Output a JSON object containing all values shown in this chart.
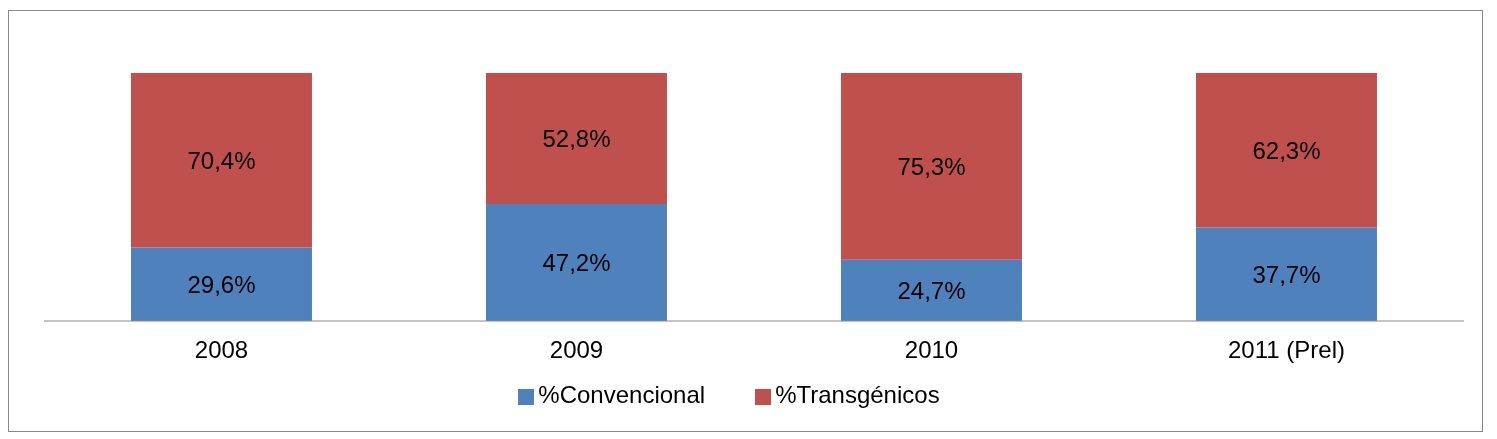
{
  "chart_data": {
    "type": "bar",
    "stacked": true,
    "categories": [
      "2008",
      "2009",
      "2010",
      "2011 (Prel)"
    ],
    "ylim": [
      0,
      100
    ],
    "tick_labels": "x",
    "grid": false,
    "legend": "bottom",
    "series": [
      {
        "name": "%Convencional",
        "color": "#4f81bd",
        "values": [
          29.6,
          47.2,
          24.7,
          37.7
        ],
        "value_labels": [
          "29,6%",
          "47,2%",
          "24,7%",
          "37,7%"
        ]
      },
      {
        "name": "%Transgénicos",
        "color": "#c0504d",
        "values": [
          70.4,
          52.8,
          75.3,
          62.3
        ],
        "value_labels": [
          "70,4%",
          "52,8%",
          "75,3%",
          "62,3%"
        ]
      }
    ]
  }
}
